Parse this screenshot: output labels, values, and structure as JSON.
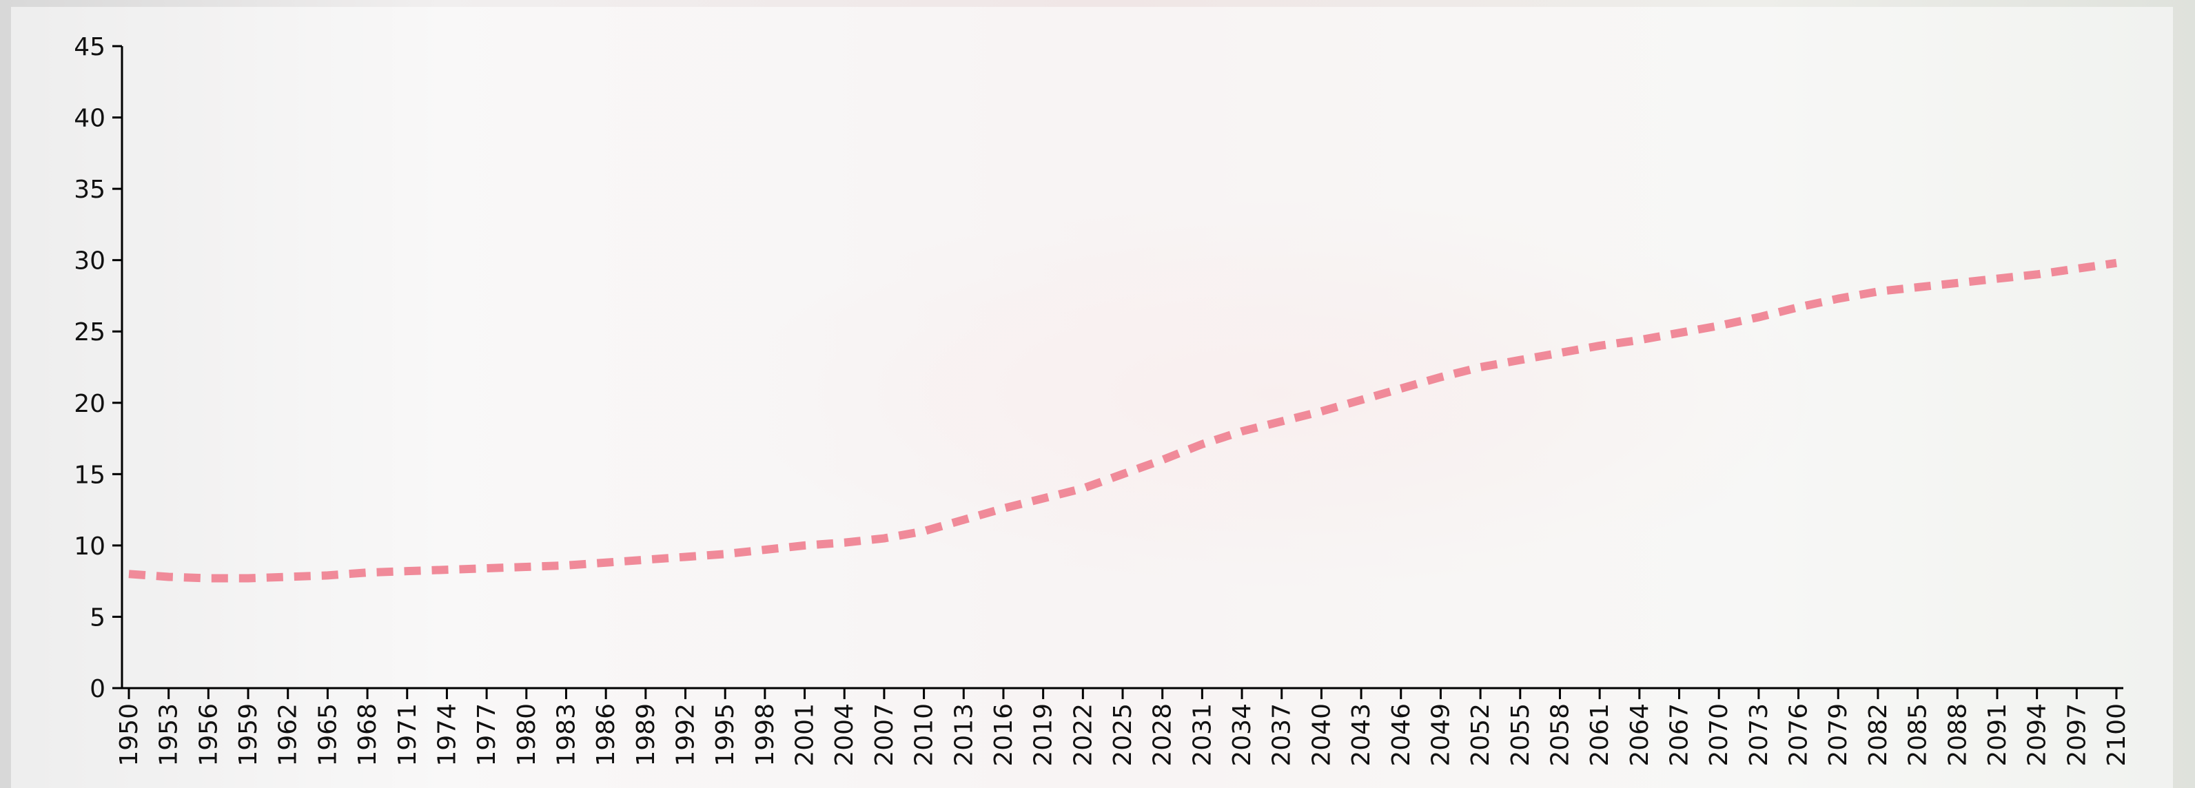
{
  "chart_data": {
    "type": "line",
    "x": [
      1950,
      1953,
      1956,
      1959,
      1962,
      1965,
      1968,
      1971,
      1974,
      1977,
      1980,
      1983,
      1986,
      1989,
      1992,
      1995,
      1998,
      2001,
      2004,
      2007,
      2010,
      2013,
      2016,
      2019,
      2022,
      2025,
      2028,
      2031,
      2034,
      2037,
      2040,
      2043,
      2046,
      2049,
      2052,
      2055,
      2058,
      2061,
      2064,
      2067,
      2070,
      2073,
      2076,
      2079,
      2082,
      2085,
      2088,
      2091,
      2094,
      2097,
      2100
    ],
    "series": [
      {
        "color": "#f08a99",
        "values": [
          8.0,
          7.8,
          7.7,
          7.7,
          7.8,
          7.9,
          8.1,
          8.2,
          8.3,
          8.4,
          8.5,
          8.6,
          8.8,
          9.0,
          9.2,
          9.4,
          9.7,
          10.0,
          10.2,
          10.5,
          11.0,
          11.8,
          12.6,
          13.3,
          14.0,
          15.0,
          16.0,
          17.1,
          18.0,
          18.7,
          19.4,
          20.2,
          21.0,
          21.8,
          22.5,
          23.0,
          23.5,
          24.0,
          24.4,
          24.9,
          25.4,
          26.0,
          26.7,
          27.3,
          27.8,
          28.1,
          28.4,
          28.7,
          29.0,
          29.4,
          29.8
        ]
      }
    ],
    "xlim": [
      1950,
      2100
    ],
    "xticks": [
      1950,
      1953,
      1956,
      1959,
      1962,
      1965,
      1968,
      1971,
      1974,
      1977,
      1980,
      1983,
      1986,
      1989,
      1992,
      1995,
      1998,
      2001,
      2004,
      2007,
      2010,
      2013,
      2016,
      2019,
      2022,
      2025,
      2028,
      2031,
      2034,
      2037,
      2040,
      2043,
      2046,
      2049,
      2052,
      2055,
      2058,
      2061,
      2064,
      2067,
      2070,
      2073,
      2076,
      2079,
      2082,
      2085,
      2088,
      2091,
      2094,
      2097,
      2100
    ],
    "ylim": [
      0,
      45
    ],
    "yticks": [
      0,
      5,
      10,
      15,
      20,
      25,
      30,
      35,
      40,
      45
    ],
    "line_style": "dashed"
  }
}
